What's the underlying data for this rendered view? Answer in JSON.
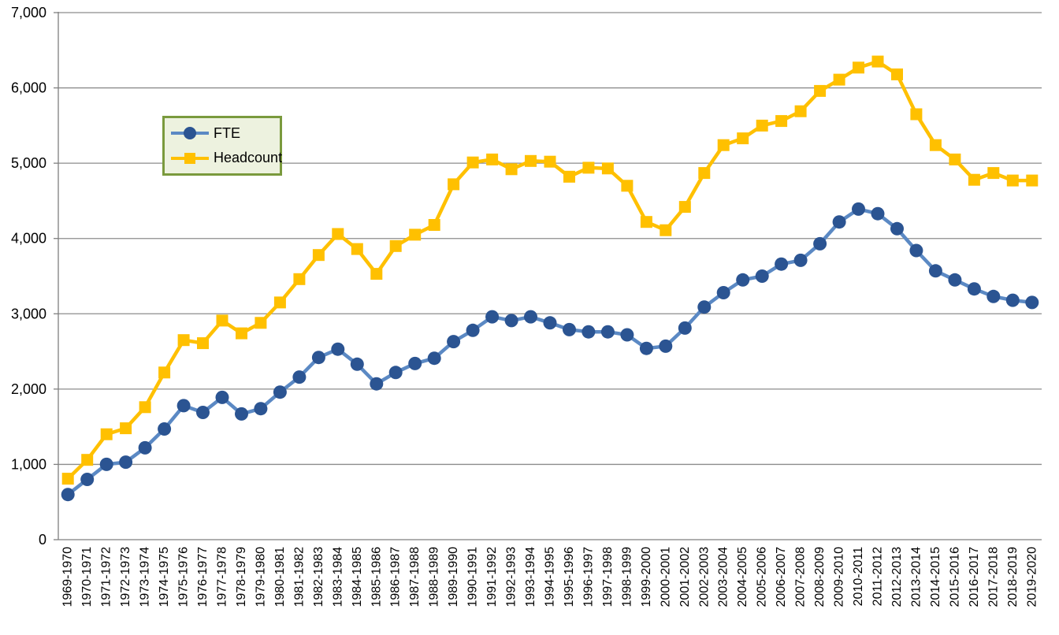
{
  "chart_data": {
    "type": "line",
    "title": "",
    "xlabel": "",
    "ylabel": "",
    "grid": true,
    "legend_position": "upper-left-inside",
    "ylim": [
      0,
      7000
    ],
    "y_ticks": [
      {
        "value": 0,
        "label": "0"
      },
      {
        "value": 1000,
        "label": "1,000"
      },
      {
        "value": 2000,
        "label": "2,000"
      },
      {
        "value": 3000,
        "label": "3,000"
      },
      {
        "value": 4000,
        "label": "4,000"
      },
      {
        "value": 5000,
        "label": "5,000"
      },
      {
        "value": 6000,
        "label": "6,000"
      },
      {
        "value": 7000,
        "label": "7,000"
      }
    ],
    "categories": [
      "1969-1970",
      "1970-1971",
      "1971-1972",
      "1972-1973",
      "1973-1974",
      "1974-1975",
      "1975-1976",
      "1976-1977",
      "1977-1978",
      "1978-1979",
      "1979-1980",
      "1980-1981",
      "1981-1982",
      "1982-1983",
      "1983-1984",
      "1984-1985",
      "1985-1986",
      "1986-1987",
      "1987-1988",
      "1988-1989",
      "1989-1990",
      "1990-1991",
      "1991-1992",
      "1992-1993",
      "1993-1994",
      "1994-1995",
      "1995-1996",
      "1996-1997",
      "1997-1998",
      "1998-1999",
      "1999-2000",
      "2000-2001",
      "2001-2002",
      "2002-2003",
      "2003-2004",
      "2004-2005",
      "2005-2006",
      "2006-2007",
      "2007-2008",
      "2008-2009",
      "2009-2010",
      "2010-2011",
      "2011-2012",
      "2012-2013",
      "2013-2014",
      "2014-2015",
      "2015-2016",
      "2016-2017",
      "2017-2018",
      "2018-2019",
      "2019-2020"
    ],
    "series": [
      {
        "name": "FTE",
        "marker": "circle",
        "line_color": "#5B89C4",
        "marker_color": "#2B5492",
        "values": [
          600,
          800,
          1000,
          1030,
          1220,
          1470,
          1780,
          1690,
          1890,
          1670,
          1740,
          1960,
          2160,
          2420,
          2530,
          2330,
          2070,
          2220,
          2340,
          2410,
          2630,
          2780,
          2960,
          2910,
          2960,
          2880,
          2790,
          2760,
          2760,
          2720,
          2540,
          2570,
          2810,
          3090,
          3280,
          3450,
          3500,
          3660,
          3710,
          3930,
          4220,
          4390,
          4330,
          4130,
          3840,
          3570,
          3450,
          3330,
          3230,
          3180,
          3150
        ]
      },
      {
        "name": "Headcount",
        "marker": "square",
        "line_color": "#FFC000",
        "marker_color": "#FFC000",
        "values": [
          810,
          1060,
          1400,
          1480,
          1760,
          2220,
          2650,
          2610,
          2910,
          2740,
          2880,
          3150,
          3460,
          3780,
          4060,
          3860,
          3530,
          3900,
          4050,
          4180,
          4720,
          5010,
          5050,
          4920,
          5030,
          5020,
          4820,
          4940,
          4930,
          4700,
          4220,
          4110,
          4420,
          4870,
          5240,
          5330,
          5500,
          5560,
          5690,
          5960,
          6110,
          6270,
          6350,
          6180,
          5650,
          5240,
          5050,
          4780,
          4870,
          4770,
          4770
        ]
      }
    ],
    "style": {
      "gridline_color": "#8C8C8C",
      "axis_color": "#7F7F7F",
      "text_color": "#000000",
      "legend_fill": "#EDF2DF",
      "legend_border": "#7A9A3D"
    }
  }
}
